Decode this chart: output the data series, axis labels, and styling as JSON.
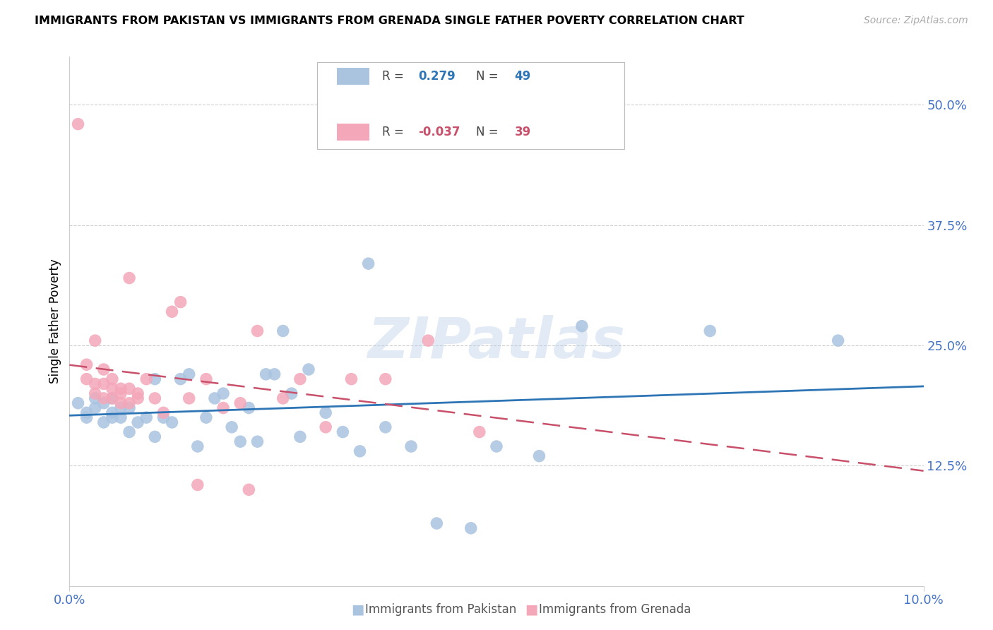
{
  "title": "IMMIGRANTS FROM PAKISTAN VS IMMIGRANTS FROM GRENADA SINGLE FATHER POVERTY CORRELATION CHART",
  "source": "Source: ZipAtlas.com",
  "ylabel": "Single Father Poverty",
  "ytick_labels": [
    "50.0%",
    "37.5%",
    "25.0%",
    "12.5%"
  ],
  "ytick_values": [
    0.5,
    0.375,
    0.25,
    0.125
  ],
  "xlim": [
    0.0,
    0.1
  ],
  "ylim": [
    0.0,
    0.55
  ],
  "legend_r_pakistan": "R =  0.279",
  "legend_n_pakistan": "N = 49",
  "legend_r_grenada": "R = -0.037",
  "legend_n_grenada": "N = 39",
  "color_pakistan": "#aac4e0",
  "color_grenada": "#f4a7b9",
  "color_pakistan_line": "#2e75b6",
  "color_grenada_line": "#c9506a",
  "color_axis_right": "#4472c4",
  "color_axis_bottom": "#4472c4",
  "watermark_text": "ZIPatlas",
  "pakistan_x": [
    0.001,
    0.002,
    0.002,
    0.003,
    0.003,
    0.004,
    0.004,
    0.005,
    0.005,
    0.005,
    0.006,
    0.006,
    0.007,
    0.007,
    0.008,
    0.009,
    0.01,
    0.01,
    0.011,
    0.012,
    0.013,
    0.014,
    0.015,
    0.016,
    0.017,
    0.018,
    0.019,
    0.02,
    0.021,
    0.022,
    0.023,
    0.024,
    0.025,
    0.026,
    0.027,
    0.028,
    0.03,
    0.032,
    0.034,
    0.035,
    0.037,
    0.04,
    0.043,
    0.047,
    0.05,
    0.055,
    0.06,
    0.075,
    0.09
  ],
  "pakistan_y": [
    0.19,
    0.18,
    0.175,
    0.185,
    0.195,
    0.17,
    0.19,
    0.18,
    0.195,
    0.175,
    0.185,
    0.175,
    0.16,
    0.185,
    0.17,
    0.175,
    0.215,
    0.155,
    0.175,
    0.17,
    0.215,
    0.22,
    0.145,
    0.175,
    0.195,
    0.2,
    0.165,
    0.15,
    0.185,
    0.15,
    0.22,
    0.22,
    0.265,
    0.2,
    0.155,
    0.225,
    0.18,
    0.16,
    0.14,
    0.335,
    0.165,
    0.145,
    0.065,
    0.06,
    0.145,
    0.135,
    0.27,
    0.265,
    0.255
  ],
  "grenada_x": [
    0.001,
    0.002,
    0.002,
    0.003,
    0.003,
    0.003,
    0.004,
    0.004,
    0.004,
    0.005,
    0.005,
    0.005,
    0.006,
    0.006,
    0.006,
    0.007,
    0.007,
    0.007,
    0.008,
    0.008,
    0.009,
    0.01,
    0.011,
    0.012,
    0.013,
    0.014,
    0.015,
    0.016,
    0.018,
    0.02,
    0.021,
    0.022,
    0.025,
    0.027,
    0.03,
    0.033,
    0.037,
    0.042,
    0.048
  ],
  "grenada_y": [
    0.48,
    0.23,
    0.215,
    0.2,
    0.21,
    0.255,
    0.21,
    0.225,
    0.195,
    0.195,
    0.205,
    0.215,
    0.19,
    0.2,
    0.205,
    0.19,
    0.205,
    0.32,
    0.2,
    0.195,
    0.215,
    0.195,
    0.18,
    0.285,
    0.295,
    0.195,
    0.105,
    0.215,
    0.185,
    0.19,
    0.1,
    0.265,
    0.195,
    0.215,
    0.165,
    0.215,
    0.215,
    0.255,
    0.16
  ]
}
